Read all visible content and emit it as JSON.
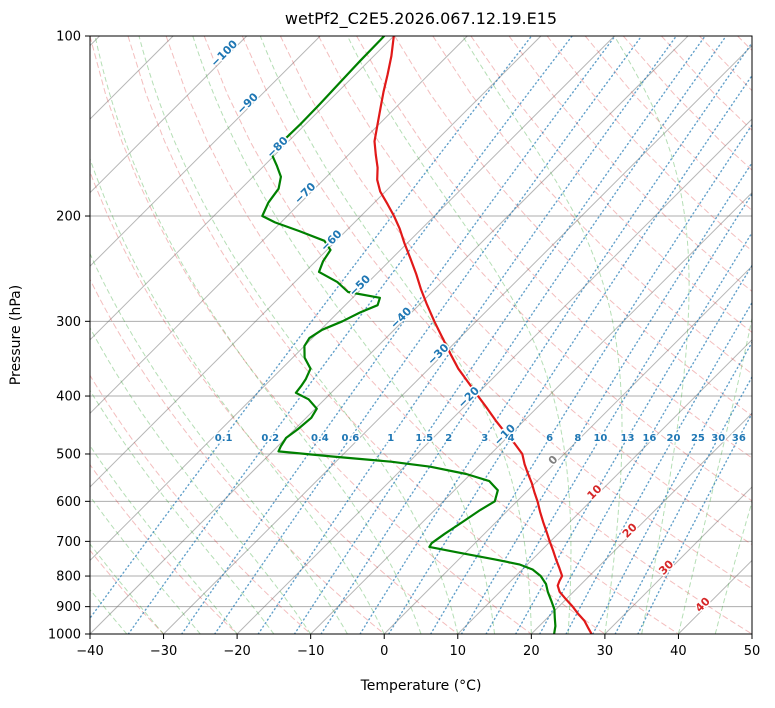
{
  "title": "wetPf2_C2E5.2026.067.12.19.E15",
  "axes": {
    "x_label": "Temperature (°C)",
    "y_label": "Pressure (hPa)",
    "x_ticks": [
      -40,
      -30,
      -20,
      -10,
      0,
      10,
      20,
      30,
      40,
      50
    ],
    "y_ticks": [
      100,
      200,
      300,
      400,
      500,
      600,
      700,
      800,
      900,
      1000
    ]
  },
  "style": {
    "frame": "#000000",
    "grid": "rgba(130,130,130,0.65)",
    "isotherm": "rgba(110,110,110,0.5)",
    "dry_adiabat": "rgba(214,39,40,0.3)",
    "moist_adiabat": "rgba(44,160,44,0.35)",
    "mixing": "rgba(31,119,180,0.7)",
    "temperature": "#e11919",
    "dewpoint": "#008000",
    "label_neg": "#1f77b4",
    "label_zero": "#7f7f7f",
    "label_pos": "#d62728",
    "mixing_label": "#1f77b4"
  },
  "chart_data": {
    "type": "line",
    "variant": "skew-t-log-p",
    "title": "wetPf2_C2E5.2026.067.12.19.E15",
    "xlabel": "Temperature (°C)",
    "ylabel": "Pressure (hPa)",
    "xlim_bottom_axis_c": [
      -40,
      50
    ],
    "pressure_range_hpa": [
      100,
      1000
    ],
    "y_scale": "log",
    "skew_degrees": 45,
    "grid": true,
    "series": [
      {
        "name": "temperature",
        "color": "#e11919",
        "points_p_hpa_t_c": [
          [
            100,
            -80
          ],
          [
            108,
            -77.6
          ],
          [
            116,
            -75.6
          ],
          [
            124,
            -73.8
          ],
          [
            132,
            -72
          ],
          [
            140,
            -70.3
          ],
          [
            150,
            -68.3
          ],
          [
            158,
            -66.3
          ],
          [
            166,
            -64.3
          ],
          [
            174,
            -62.7
          ],
          [
            182,
            -60.7
          ],
          [
            191,
            -58
          ],
          [
            200,
            -55.5
          ],
          [
            210,
            -53
          ],
          [
            222,
            -50.4
          ],
          [
            235,
            -47.6
          ],
          [
            250,
            -44.6
          ],
          [
            265,
            -41.9
          ],
          [
            280,
            -39.2
          ],
          [
            300,
            -35.7
          ],
          [
            320,
            -32.3
          ],
          [
            340,
            -29.1
          ],
          [
            360,
            -26
          ],
          [
            380,
            -22.7
          ],
          [
            400,
            -19.6
          ],
          [
            420,
            -16.6
          ],
          [
            440,
            -13.8
          ],
          [
            460,
            -11
          ],
          [
            480,
            -8.2
          ],
          [
            500,
            -5.7
          ],
          [
            520,
            -4
          ],
          [
            540,
            -2.2
          ],
          [
            560,
            -0.4
          ],
          [
            580,
            1.2
          ],
          [
            600,
            2.8
          ],
          [
            625,
            4.6
          ],
          [
            650,
            6.4
          ],
          [
            675,
            8.2
          ],
          [
            700,
            9.9
          ],
          [
            725,
            11.6
          ],
          [
            750,
            13.2
          ],
          [
            775,
            14.8
          ],
          [
            800,
            16.3
          ],
          [
            815,
            16.6
          ],
          [
            830,
            17
          ],
          [
            850,
            18.1
          ],
          [
            875,
            20
          ],
          [
            900,
            21.9
          ],
          [
            925,
            23.6
          ],
          [
            950,
            25.4
          ],
          [
            975,
            26.8
          ],
          [
            1000,
            28.2
          ]
        ]
      },
      {
        "name": "dewpoint",
        "color": "#008000",
        "points_p_hpa_t_c": [
          [
            100,
            -81.3
          ],
          [
            110,
            -81.2
          ],
          [
            120,
            -81
          ],
          [
            130,
            -80.8
          ],
          [
            140,
            -80.7
          ],
          [
            150,
            -80.8
          ],
          [
            158,
            -80.4
          ],
          [
            165,
            -78.2
          ],
          [
            172,
            -76.2
          ],
          [
            180,
            -74.9
          ],
          [
            190,
            -74.4
          ],
          [
            200,
            -73.4
          ],
          [
            205,
            -70.8
          ],
          [
            212,
            -66.3
          ],
          [
            220,
            -61.6
          ],
          [
            228,
            -59.5
          ],
          [
            238,
            -59
          ],
          [
            248,
            -58.1
          ],
          [
            258,
            -54.2
          ],
          [
            268,
            -51.4
          ],
          [
            274,
            -46.3
          ],
          [
            282,
            -45.6
          ],
          [
            290,
            -47
          ],
          [
            300,
            -48.2
          ],
          [
            310,
            -49.8
          ],
          [
            320,
            -50.4
          ],
          [
            330,
            -50
          ],
          [
            345,
            -48.4
          ],
          [
            360,
            -46.1
          ],
          [
            375,
            -45.3
          ],
          [
            385,
            -45
          ],
          [
            395,
            -44.8
          ],
          [
            405,
            -42.2
          ],
          [
            420,
            -39.8
          ],
          [
            435,
            -39.3
          ],
          [
            455,
            -39.6
          ],
          [
            470,
            -40
          ],
          [
            485,
            -39.6
          ],
          [
            495,
            -39.2
          ],
          [
            505,
            -31
          ],
          [
            515,
            -22.5
          ],
          [
            525,
            -16.5
          ],
          [
            540,
            -10.6
          ],
          [
            555,
            -6.5
          ],
          [
            575,
            -4.1
          ],
          [
            600,
            -3
          ],
          [
            620,
            -3.8
          ],
          [
            650,
            -4.6
          ],
          [
            680,
            -5.4
          ],
          [
            705,
            -5.9
          ],
          [
            715,
            -5.7
          ],
          [
            730,
            -1.2
          ],
          [
            750,
            4.8
          ],
          [
            765,
            8.9
          ],
          [
            780,
            11.4
          ],
          [
            800,
            13.4
          ],
          [
            825,
            15.2
          ],
          [
            850,
            16.5
          ],
          [
            880,
            18.2
          ],
          [
            910,
            19.8
          ],
          [
            940,
            21
          ],
          [
            970,
            22.2
          ],
          [
            1000,
            23.1
          ]
        ]
      }
    ],
    "background": {
      "isotherms_c": {
        "from": -120,
        "to": 50,
        "step": 10
      },
      "dry_adiabats_theta_c": {
        "from": -40,
        "to": 200,
        "step": 10
      },
      "moist_adiabats_t0_c": {
        "from": -40,
        "to": 45,
        "step": 5
      },
      "mixing_ratio_lines_g_kg": [
        0.1,
        0.2,
        0.4,
        0.6,
        1,
        1.5,
        2,
        3,
        4,
        6,
        8,
        10,
        13,
        16,
        20,
        25,
        30,
        36
      ],
      "mixing_ratio_label_pressure_hpa": 470,
      "isotherm_labels": [
        {
          "t": -100,
          "p": 108
        },
        {
          "t": -90,
          "p": 131
        },
        {
          "t": -80,
          "p": 155
        },
        {
          "t": -70,
          "p": 185
        },
        {
          "t": -60,
          "p": 222
        },
        {
          "t": -50,
          "p": 264
        },
        {
          "t": -40,
          "p": 299
        },
        {
          "t": -30,
          "p": 344
        },
        {
          "t": -20,
          "p": 406
        },
        {
          "t": -10,
          "p": 469
        },
        {
          "t": 0,
          "p": 517
        },
        {
          "t": 10,
          "p": 585
        },
        {
          "t": 20,
          "p": 678
        },
        {
          "t": 30,
          "p": 782
        },
        {
          "t": 40,
          "p": 902
        }
      ]
    }
  }
}
